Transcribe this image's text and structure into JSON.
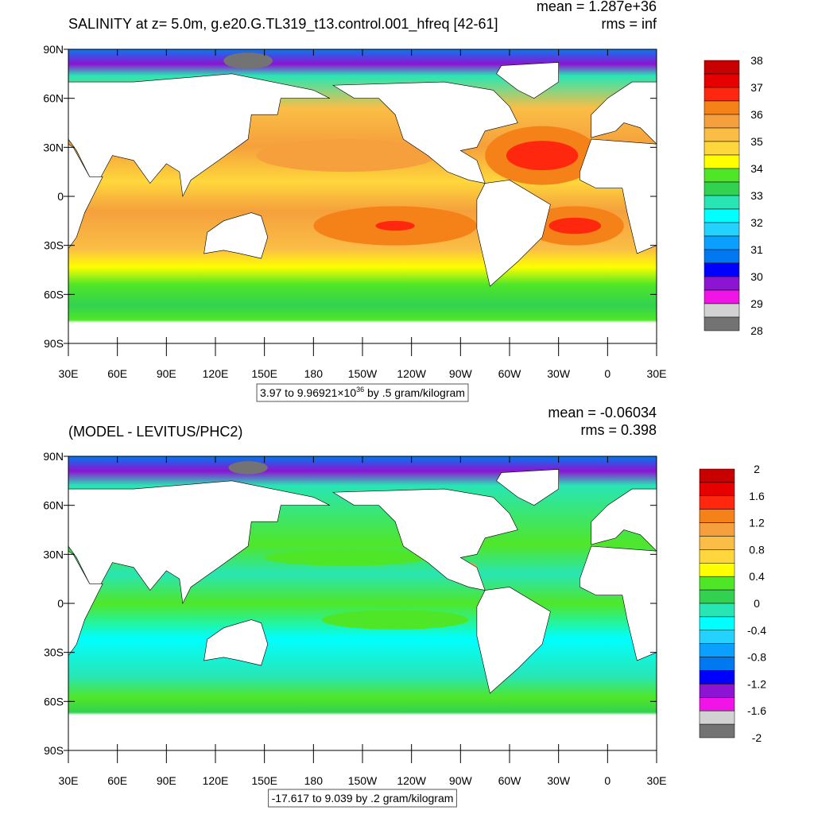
{
  "panels": [
    {
      "title": "SALINITY at z=   5.0m, g.e20.G.TL319_t13.control.001_hfreq [42-61]",
      "stats": [
        "mean = 1.287e+36",
        "rms = inf"
      ],
      "y_labels": [
        "90N",
        "60N",
        "30N",
        "0",
        "30S",
        "60S",
        "90S"
      ],
      "x_labels": [
        "30E",
        "60E",
        "90E",
        "120E",
        "150E",
        "180",
        "150W",
        "120W",
        "90W",
        "60W",
        "30W",
        "0",
        "30E"
      ],
      "range_label": {
        "text": "3.97 to 9.96921×10",
        "superscript": "36",
        "suffix": " by .5 gram/kilogram"
      },
      "colorbar": {
        "labels": [
          "38",
          "37",
          "36",
          "35",
          "34",
          "33",
          "32",
          "31",
          "30",
          "29",
          "28"
        ],
        "colors": [
          "#c80000",
          "#e60000",
          "#ff280f",
          "#f58219",
          "#f5a03c",
          "#fabe46",
          "#ffd73c",
          "#ffff00",
          "#50e628",
          "#32d250",
          "#28e6b4",
          "#00ffff",
          "#23d2ff",
          "#0aa0ff",
          "#0078f0",
          "#0000ff",
          "#8c14d2",
          "#f014e6",
          "#d2d2d2",
          "#737373"
        ]
      }
    },
    {
      "title": "(MODEL - LEVITUS/PHC2)",
      "stats": [
        "mean = -0.06034",
        "rms = 0.398"
      ],
      "y_labels": [
        "90N",
        "60N",
        "30N",
        "0",
        "30S",
        "60S",
        "90S"
      ],
      "x_labels": [
        "30E",
        "60E",
        "90E",
        "120E",
        "150E",
        "180",
        "150W",
        "120W",
        "90W",
        "60W",
        "30W",
        "0",
        "30E"
      ],
      "range_label": {
        "text": "-17.617 to 9.039 by .2 gram/kilogram"
      },
      "colorbar": {
        "labels": [
          "2",
          "1.6",
          "1.2",
          "0.8",
          "0.4",
          "0",
          "-0.4",
          "-0.8",
          "-1.2",
          "-1.6",
          "-2"
        ],
        "colors": [
          "#c80000",
          "#e60000",
          "#ff280f",
          "#f58219",
          "#f5a03c",
          "#fabe46",
          "#ffd73c",
          "#ffff00",
          "#50e628",
          "#32d250",
          "#28e6b4",
          "#00ffff",
          "#23d2ff",
          "#0aa0ff",
          "#0078f0",
          "#0000ff",
          "#8c14d2",
          "#f014e6",
          "#d2d2d2",
          "#737373"
        ]
      }
    }
  ]
}
